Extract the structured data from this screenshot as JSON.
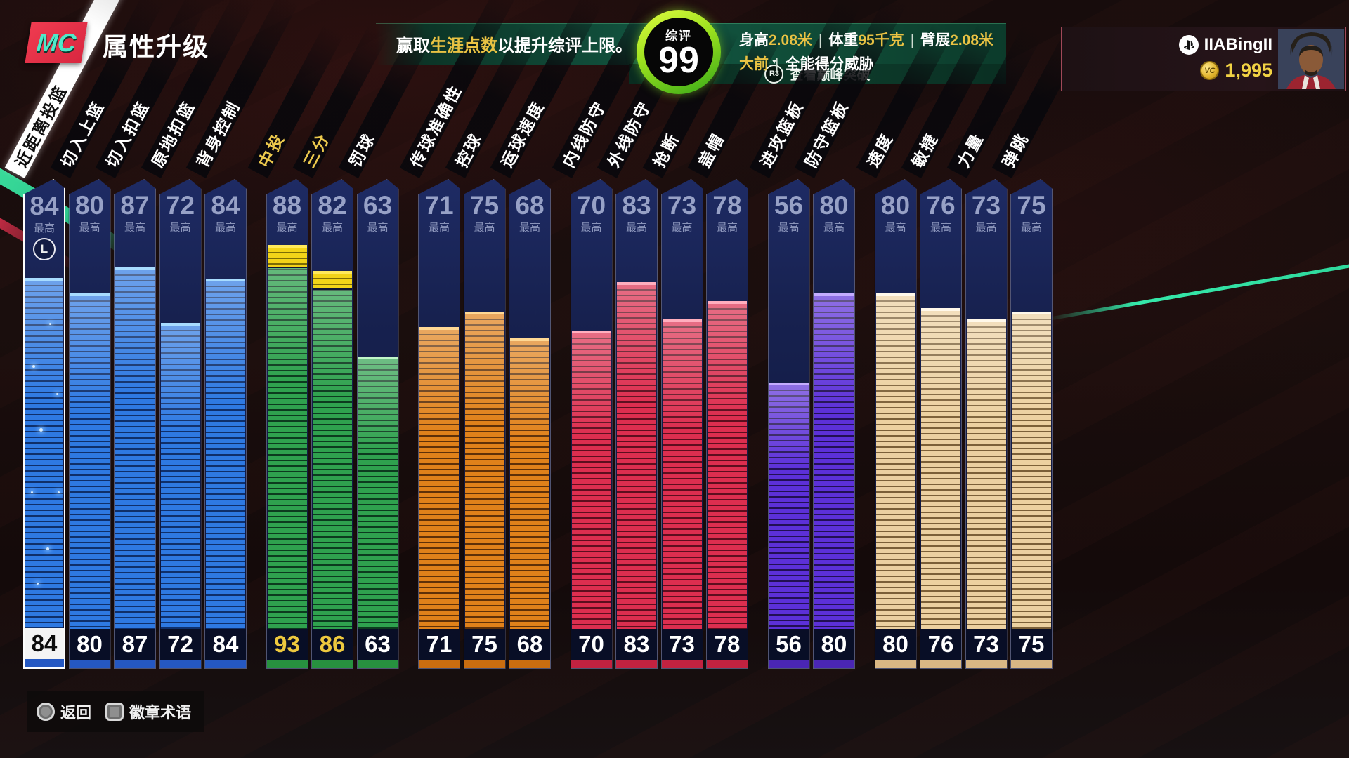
{
  "header": {
    "logo_text": "MC",
    "title": "属性升级",
    "banner": {
      "pre": "赢取",
      "highlight": "生涯点数",
      "post": "以提升综评上限。"
    },
    "overall": {
      "label": "综评",
      "value": "99"
    },
    "stats": {
      "items": [
        {
          "label": "身高",
          "value": "2.08米"
        },
        {
          "label": "体重",
          "value": "95千克"
        },
        {
          "label": "臂展",
          "value": "2.08米"
        }
      ],
      "separator": "|",
      "position": "大前",
      "build": "全能得分威胁"
    },
    "peek": {
      "button_label": "R3",
      "label": "查看巅峰突破"
    },
    "player": {
      "name": "IIABingII",
      "vc_amount": "1,995",
      "platform_icon": "playstation-icon",
      "currency_icon": "vc-coin-icon"
    }
  },
  "attributes_meta": {
    "max_label": "最高",
    "selected_stick_icon": "L"
  },
  "attributes": [
    {
      "label": "近距离投篮",
      "max": 84,
      "value": 84,
      "group": "finishing",
      "selected": true,
      "boosted": false
    },
    {
      "label": "切入上篮",
      "max": 80,
      "value": 80,
      "group": "finishing",
      "selected": false,
      "boosted": false
    },
    {
      "label": "切入扣篮",
      "max": 87,
      "value": 87,
      "group": "finishing",
      "selected": false,
      "boosted": false
    },
    {
      "label": "原地扣篮",
      "max": 72,
      "value": 72,
      "group": "finishing",
      "selected": false,
      "boosted": false
    },
    {
      "label": "背身控制",
      "max": 84,
      "value": 84,
      "group": "finishing",
      "selected": false,
      "boosted": false
    },
    {
      "label": "中投",
      "max": 88,
      "value": 93,
      "group": "shooting",
      "selected": false,
      "boosted": true
    },
    {
      "label": "三分",
      "max": 82,
      "value": 86,
      "group": "shooting",
      "selected": false,
      "boosted": true
    },
    {
      "label": "罚球",
      "max": 63,
      "value": 63,
      "group": "shooting",
      "selected": false,
      "boosted": false
    },
    {
      "label": "传球准确性",
      "max": 71,
      "value": 71,
      "group": "playmaking",
      "selected": false,
      "boosted": false
    },
    {
      "label": "控球",
      "max": 75,
      "value": 75,
      "group": "playmaking",
      "selected": false,
      "boosted": false
    },
    {
      "label": "运球速度",
      "max": 68,
      "value": 68,
      "group": "playmaking",
      "selected": false,
      "boosted": false
    },
    {
      "label": "内线防守",
      "max": 70,
      "value": 70,
      "group": "defense",
      "selected": false,
      "boosted": false
    },
    {
      "label": "外线防守",
      "max": 83,
      "value": 83,
      "group": "defense",
      "selected": false,
      "boosted": false
    },
    {
      "label": "抢断",
      "max": 73,
      "value": 73,
      "group": "defense",
      "selected": false,
      "boosted": false
    },
    {
      "label": "盖帽",
      "max": 78,
      "value": 78,
      "group": "defense",
      "selected": false,
      "boosted": false
    },
    {
      "label": "进攻篮板",
      "max": 56,
      "value": 56,
      "group": "rebounding",
      "selected": false,
      "boosted": false
    },
    {
      "label": "防守篮板",
      "max": 80,
      "value": 80,
      "group": "rebounding",
      "selected": false,
      "boosted": false
    },
    {
      "label": "速度",
      "max": 80,
      "value": 80,
      "group": "physical",
      "selected": false,
      "boosted": false
    },
    {
      "label": "敏捷",
      "max": 76,
      "value": 76,
      "group": "physical",
      "selected": false,
      "boosted": false
    },
    {
      "label": "力量",
      "max": 73,
      "value": 73,
      "group": "physical",
      "selected": false,
      "boosted": false
    },
    {
      "label": "弹跳",
      "max": 75,
      "value": 75,
      "group": "physical",
      "selected": false,
      "boosted": false
    }
  ],
  "colors": {
    "groups": {
      "finishing": {
        "main": "#2e79e2",
        "dark": "#0f2f6a",
        "cap": "#a8dcff",
        "base": "#2558c2"
      },
      "shooting": {
        "main": "#2fa14e",
        "dark": "#0c3a1e",
        "cap": "#c0f5c8",
        "base": "#27913f"
      },
      "playmaking": {
        "main": "#e0811a",
        "dark": "#5e3008",
        "cap": "#ffd894",
        "base": "#c96d10"
      },
      "defense": {
        "main": "#dc2e4f",
        "dark": "#5c0e1e",
        "cap": "#ffaebe",
        "base": "#c22240"
      },
      "rebounding": {
        "main": "#5c30d8",
        "dark": "#221054",
        "cap": "#c4acff",
        "base": "#4a26b4"
      },
      "physical": {
        "main": "#ecd0a0",
        "dark": "#7c6038",
        "cap": "#fff8ea",
        "base": "#d9b784"
      }
    },
    "boost_main": "#f2d318",
    "boost_dark": "#7c6c04",
    "boost_cap": "#ffe95a",
    "value_normal": "#ffffff",
    "value_boosted": "#edc83e",
    "value_selected": "#101010",
    "gold": "#e9c243",
    "overall_ring": "#9ae01e"
  },
  "footer": {
    "buttons": [
      {
        "icon": "circle-button-icon",
        "label": "返回"
      },
      {
        "icon": "square-button-icon",
        "label": "徽章术语"
      }
    ]
  }
}
